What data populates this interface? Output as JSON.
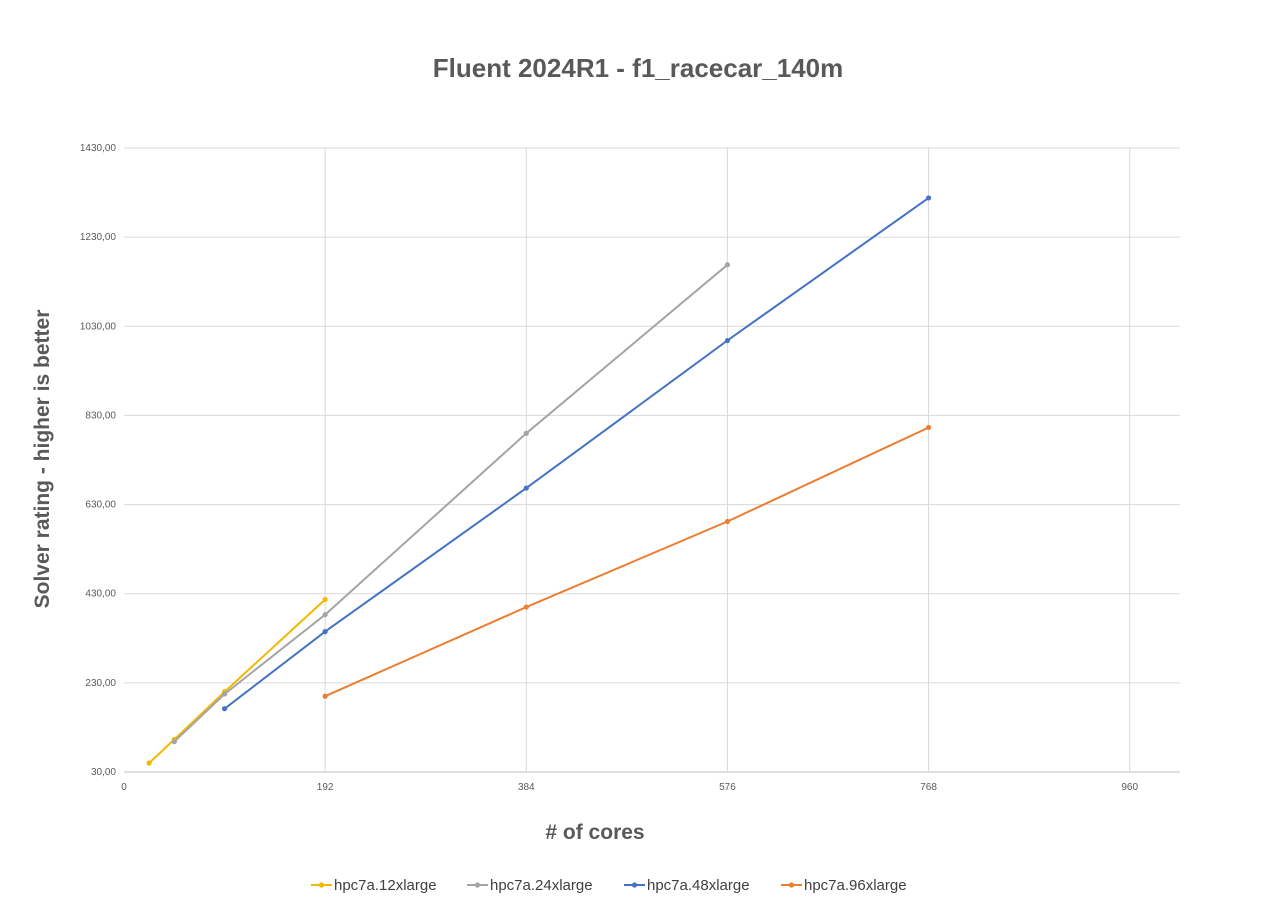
{
  "chart_data": {
    "type": "line",
    "title": "Fluent 2024R1 - f1_racecar_140m",
    "xlabel": "# of cores",
    "ylabel": "Solver rating - higher is better",
    "xlim": [
      0,
      1008
    ],
    "ylim": [
      30,
      1430
    ],
    "x_ticks": [
      "0",
      "192",
      "384",
      "576",
      "768",
      "960"
    ],
    "x_tick_values": [
      0,
      192,
      384,
      576,
      768,
      960
    ],
    "y_ticks": [
      "30,00",
      "230,00",
      "430,00",
      "630,00",
      "830,00",
      "1030,00",
      "1230,00",
      "1430,00"
    ],
    "y_tick_values": [
      30,
      230,
      430,
      630,
      830,
      1030,
      1230,
      1430
    ],
    "grid": true,
    "legend_position": "bottom",
    "series": [
      {
        "name": "hpc7a.12xlarge",
        "color": "#F2B800",
        "x": [
          24,
          48,
          96,
          192
        ],
        "y": [
          50,
          103,
          210,
          417
        ]
      },
      {
        "name": "hpc7a.24xlarge",
        "color": "#A5A5A5",
        "x": [
          48,
          96,
          192,
          384,
          576
        ],
        "y": [
          98,
          205,
          383,
          790,
          1168
        ]
      },
      {
        "name": "hpc7a.48xlarge",
        "color": "#4472C4",
        "x": [
          96,
          192,
          384,
          576,
          768
        ],
        "y": [
          172,
          345,
          667,
          998,
          1318
        ]
      },
      {
        "name": "hpc7a.96xlarge",
        "color": "#ED7D31",
        "x": [
          192,
          384,
          576,
          768
        ],
        "y": [
          200,
          400,
          592,
          803
        ]
      }
    ]
  }
}
